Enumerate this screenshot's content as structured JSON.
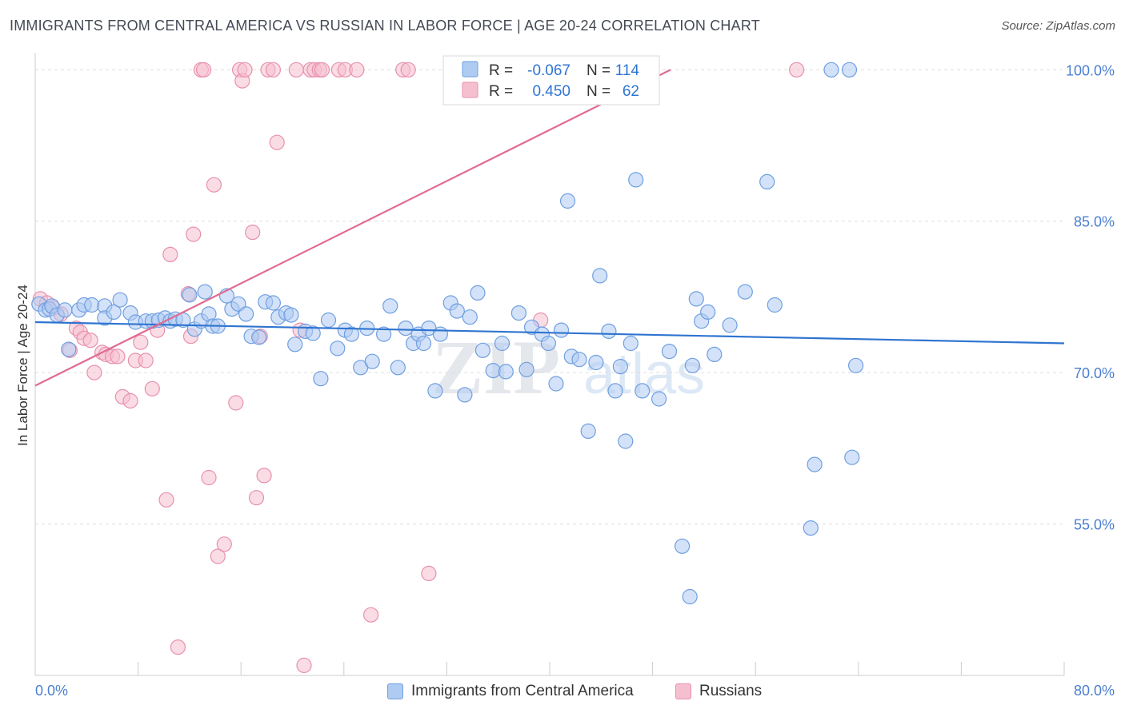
{
  "title": "IMMIGRANTS FROM CENTRAL AMERICA VS RUSSIAN IN LABOR FORCE | AGE 20-24 CORRELATION CHART",
  "source": "Source: ZipAtlas.com",
  "watermark": {
    "zip": "ZIP",
    "atlas": "atlas"
  },
  "colors": {
    "blue_fill": "#aecbf2",
    "blue_stroke": "#6f9fe0",
    "blue_line": "#2f74d0",
    "pink_fill": "#f6bfd0",
    "pink_stroke": "#e890ad",
    "pink_line": "#e06b93",
    "axis_label": "#4a7fd0",
    "grid": "#dddddd"
  },
  "stats_legend": {
    "rows": [
      {
        "r_label": "R =",
        "r_value": "-0.067",
        "n_label": "N =",
        "n_value": "114"
      },
      {
        "r_label": "R =",
        "r_value": "0.450",
        "n_label": "N =",
        "n_value": "62"
      }
    ]
  },
  "chart_data": {
    "type": "scatter",
    "title": "IMMIGRANTS FROM CENTRAL AMERICA VS RUSSIAN IN LABOR FORCE | AGE 20-24 CORRELATION CHART",
    "xlabel": "",
    "ylabel": "In Labor Force | Age 20-24",
    "xlim": [
      0,
      80
    ],
    "ylim": [
      40,
      102
    ],
    "x_tick_labels": [
      {
        "value": 0,
        "label": "0.0%"
      },
      {
        "value": 80,
        "label": "80.0%"
      }
    ],
    "y_tick_labels": [
      {
        "value": 100,
        "label": "100.0%"
      },
      {
        "value": 85,
        "label": "85.0%"
      },
      {
        "value": 70,
        "label": "70.0%"
      },
      {
        "value": 55,
        "label": "55.0%"
      }
    ],
    "grid": true,
    "legend_position": "bottom-center",
    "series": [
      {
        "name": "Immigrants from Central America",
        "trend": {
          "x0": 0,
          "y0": 75.0,
          "x1": 80,
          "y1": 72.9
        },
        "points": [
          [
            0.3,
            76.8
          ],
          [
            0.8,
            76.2
          ],
          [
            1.1,
            76.3
          ],
          [
            1.3,
            76.6
          ],
          [
            1.7,
            75.7
          ],
          [
            2.3,
            76.2
          ],
          [
            2.6,
            72.3
          ],
          [
            3.4,
            76.2
          ],
          [
            3.8,
            76.7
          ],
          [
            4.4,
            76.7
          ],
          [
            5.4,
            76.6
          ],
          [
            5.4,
            75.4
          ],
          [
            6.1,
            76.0
          ],
          [
            6.6,
            77.2
          ],
          [
            7.4,
            75.9
          ],
          [
            7.8,
            75.0
          ],
          [
            8.6,
            75.1
          ],
          [
            9.1,
            75.1
          ],
          [
            9.6,
            75.2
          ],
          [
            10.1,
            75.4
          ],
          [
            10.5,
            75.1
          ],
          [
            10.9,
            75.3
          ],
          [
            11.5,
            75.2
          ],
          [
            12.0,
            77.7
          ],
          [
            12.4,
            74.3
          ],
          [
            12.9,
            75.1
          ],
          [
            13.2,
            78.0
          ],
          [
            13.5,
            75.8
          ],
          [
            13.8,
            74.6
          ],
          [
            14.2,
            74.6
          ],
          [
            14.9,
            77.6
          ],
          [
            15.3,
            76.3
          ],
          [
            15.8,
            76.8
          ],
          [
            16.4,
            75.8
          ],
          [
            16.8,
            73.6
          ],
          [
            17.4,
            73.5
          ],
          [
            17.9,
            77.0
          ],
          [
            18.5,
            76.9
          ],
          [
            18.9,
            75.5
          ],
          [
            19.5,
            75.9
          ],
          [
            19.9,
            75.7
          ],
          [
            20.2,
            72.8
          ],
          [
            21.0,
            74.1
          ],
          [
            21.6,
            73.9
          ],
          [
            22.2,
            69.4
          ],
          [
            22.8,
            75.2
          ],
          [
            23.5,
            72.4
          ],
          [
            24.1,
            74.2
          ],
          [
            24.6,
            73.8
          ],
          [
            25.3,
            70.5
          ],
          [
            25.8,
            74.4
          ],
          [
            26.2,
            71.1
          ],
          [
            27.1,
            73.8
          ],
          [
            27.6,
            76.6
          ],
          [
            28.2,
            70.5
          ],
          [
            28.8,
            74.4
          ],
          [
            29.4,
            72.9
          ],
          [
            29.8,
            73.8
          ],
          [
            30.2,
            72.9
          ],
          [
            30.6,
            74.4
          ],
          [
            31.1,
            68.2
          ],
          [
            31.5,
            73.8
          ],
          [
            32.3,
            76.9
          ],
          [
            32.8,
            76.1
          ],
          [
            33.4,
            67.8
          ],
          [
            33.8,
            75.5
          ],
          [
            34.4,
            77.9
          ],
          [
            34.8,
            72.2
          ],
          [
            35.6,
            70.2
          ],
          [
            36.3,
            72.9
          ],
          [
            36.6,
            70.1
          ],
          [
            37.6,
            75.9
          ],
          [
            38.2,
            70.3
          ],
          [
            38.6,
            74.5
          ],
          [
            39.4,
            73.8
          ],
          [
            39.9,
            72.9
          ],
          [
            40.5,
            68.9
          ],
          [
            40.9,
            74.2
          ],
          [
            41.4,
            87.0
          ],
          [
            41.7,
            71.6
          ],
          [
            42.3,
            71.3
          ],
          [
            43.0,
            64.2
          ],
          [
            43.6,
            71.0
          ],
          [
            43.9,
            79.6
          ],
          [
            44.6,
            74.1
          ],
          [
            45.1,
            68.2
          ],
          [
            45.5,
            70.6
          ],
          [
            45.9,
            63.2
          ],
          [
            46.3,
            72.9
          ],
          [
            46.7,
            89.1
          ],
          [
            47.2,
            68.2
          ],
          [
            48.5,
            67.4
          ],
          [
            49.3,
            72.1
          ],
          [
            50.3,
            52.8
          ],
          [
            50.9,
            47.8
          ],
          [
            51.1,
            70.7
          ],
          [
            51.4,
            77.3
          ],
          [
            51.8,
            75.1
          ],
          [
            52.3,
            76.0
          ],
          [
            52.8,
            71.8
          ],
          [
            54.0,
            74.7
          ],
          [
            55.2,
            78.0
          ],
          [
            56.9,
            88.9
          ],
          [
            57.5,
            76.7
          ],
          [
            60.3,
            54.6
          ],
          [
            60.6,
            60.9
          ],
          [
            61.9,
            100.0
          ],
          [
            63.3,
            100.0
          ],
          [
            63.5,
            61.6
          ],
          [
            63.8,
            70.7
          ],
          [
            47.0,
            100.0
          ],
          [
            47.8,
            100.0
          ]
        ]
      },
      {
        "name": "Russians",
        "trend": {
          "x0": 0,
          "y0": 68.7,
          "x1": 49.4,
          "y1": 100.0
        },
        "points": [
          [
            0.4,
            77.3
          ],
          [
            0.9,
            76.9
          ],
          [
            1.4,
            76.4
          ],
          [
            2.0,
            75.8
          ],
          [
            2.7,
            72.2
          ],
          [
            3.2,
            74.4
          ],
          [
            3.5,
            74.0
          ],
          [
            3.8,
            73.4
          ],
          [
            4.3,
            73.2
          ],
          [
            4.6,
            70.0
          ],
          [
            5.2,
            72.0
          ],
          [
            5.5,
            71.8
          ],
          [
            6.0,
            71.6
          ],
          [
            6.4,
            71.6
          ],
          [
            6.8,
            67.6
          ],
          [
            7.4,
            67.2
          ],
          [
            7.8,
            71.2
          ],
          [
            8.2,
            73.0
          ],
          [
            8.6,
            71.2
          ],
          [
            9.1,
            68.4
          ],
          [
            9.5,
            74.2
          ],
          [
            10.2,
            57.4
          ],
          [
            10.5,
            81.7
          ],
          [
            11.1,
            42.8
          ],
          [
            11.9,
            77.8
          ],
          [
            12.1,
            73.6
          ],
          [
            12.3,
            83.7
          ],
          [
            12.9,
            100.0
          ],
          [
            13.1,
            100.0
          ],
          [
            13.5,
            59.6
          ],
          [
            13.9,
            88.6
          ],
          [
            14.2,
            51.8
          ],
          [
            14.7,
            53.0
          ],
          [
            15.6,
            67.0
          ],
          [
            15.9,
            100.0
          ],
          [
            16.1,
            98.9
          ],
          [
            16.3,
            100.0
          ],
          [
            16.9,
            83.9
          ],
          [
            17.2,
            57.6
          ],
          [
            17.5,
            73.6
          ],
          [
            17.8,
            59.8
          ],
          [
            18.1,
            100.0
          ],
          [
            18.5,
            100.0
          ],
          [
            18.8,
            92.8
          ],
          [
            20.3,
            100.0
          ],
          [
            20.6,
            74.2
          ],
          [
            20.9,
            41.0
          ],
          [
            21.4,
            100.0
          ],
          [
            21.7,
            100.0
          ],
          [
            22.1,
            100.0
          ],
          [
            22.3,
            100.0
          ],
          [
            23.6,
            100.0
          ],
          [
            24.1,
            100.0
          ],
          [
            25.0,
            100.0
          ],
          [
            26.1,
            46.0
          ],
          [
            28.6,
            100.0
          ],
          [
            29.0,
            100.0
          ],
          [
            30.6,
            50.1
          ],
          [
            34.6,
            100.0
          ],
          [
            36.1,
            100.0
          ],
          [
            39.3,
            75.2
          ],
          [
            59.2,
            100.0
          ]
        ]
      }
    ]
  }
}
